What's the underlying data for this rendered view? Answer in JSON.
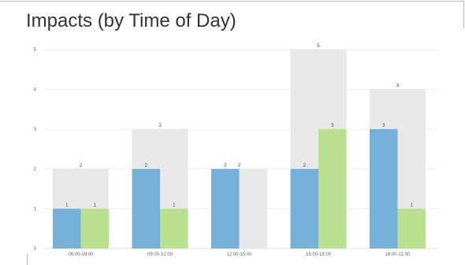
{
  "colors": {
    "total": "#e8e8e8",
    "series_a": "#74b0d8",
    "series_b": "#b9e08e",
    "grid": "#ececec",
    "axis": "#dddddd"
  },
  "chart_data": {
    "type": "bar",
    "title": "Impacts (by Time of Day)",
    "categories": [
      "06:00-09:00",
      "09:00-12:00",
      "12:00-15:00",
      "15:00-18:00",
      "18:00-21:00"
    ],
    "totals": [
      2,
      3,
      2,
      5,
      4
    ],
    "series": [
      {
        "values": [
          1,
          2,
          2,
          2,
          3
        ]
      },
      {
        "values": [
          1,
          1,
          0,
          3,
          1
        ]
      }
    ],
    "ylim": [
      0,
      5
    ],
    "yticks": [
      0,
      1,
      2,
      3,
      4,
      5
    ],
    "grid": true,
    "legend": "none"
  }
}
